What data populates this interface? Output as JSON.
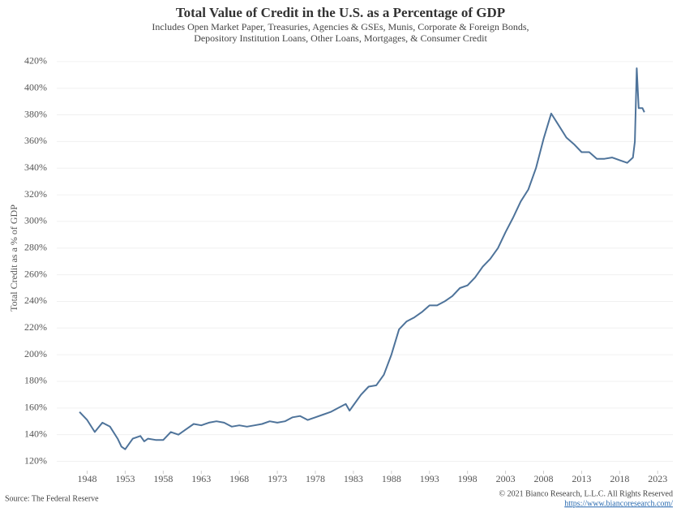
{
  "chart_data": {
    "type": "line",
    "title": "Total Value of Credit in the U.S. as a Percentage of GDP",
    "subtitle": [
      "Includes Open Market Paper, Treasuries, Agencies & GSEs, Munis, Corporate & Foreign Bonds,",
      "Depository Institution Loans, Other Loans, Mortgages, & Consumer Credit"
    ],
    "y_label": "Total Credit as a % of GDP",
    "source": "Source: The Federal Reserve",
    "copyright": "© 2021 Bianco Research, L.L.C. All Rights Reserved",
    "url": "https://www.biancoresearch.com/",
    "x": [
      1947,
      1948,
      1949,
      1950,
      1951,
      1952,
      1952.5,
      1953,
      1954,
      1955,
      1955.5,
      1956,
      1957,
      1958,
      1959,
      1960,
      1961,
      1962,
      1963,
      1964,
      1965,
      1966,
      1967,
      1968,
      1969,
      1970,
      1971,
      1972,
      1973,
      1974,
      1975,
      1976,
      1977,
      1978,
      1979,
      1980,
      1981,
      1982,
      1982.5,
      1983,
      1984,
      1985,
      1986,
      1987,
      1988,
      1989,
      1990,
      1991,
      1992,
      1993,
      1994,
      1995,
      1996,
      1997,
      1998,
      1999,
      2000,
      2001,
      2002,
      2003,
      2004,
      2005,
      2006,
      2007,
      2008,
      2009,
      2010,
      2011,
      2012,
      2013,
      2014,
      2015,
      2016,
      2017,
      2018,
      2019,
      2019.75,
      2020,
      2020.25,
      2020.5,
      2021,
      2021.25
    ],
    "series": [
      {
        "name": "Total Credit as a % of GDP",
        "color": "#4e739a",
        "values": [
          157,
          151,
          142,
          149,
          146,
          137,
          131,
          129,
          137,
          139,
          135,
          137,
          136,
          136,
          142,
          140,
          144,
          148,
          147,
          149,
          150,
          149,
          146,
          147,
          146,
          147,
          148,
          150,
          149,
          150,
          153,
          154,
          151,
          153,
          155,
          157,
          160,
          163,
          158,
          162,
          170,
          176,
          177,
          185,
          200,
          219,
          225,
          228,
          232,
          237,
          237,
          240,
          244,
          250,
          252,
          258,
          266,
          272,
          280,
          292,
          303,
          315,
          324,
          340,
          362,
          381,
          372,
          363,
          358,
          352,
          352,
          347,
          347,
          348,
          346,
          344,
          348,
          360,
          415,
          385,
          385,
          382
        ]
      }
    ],
    "xlim": [
      1944,
      2025
    ],
    "ylim": [
      113,
      426
    ],
    "xticks": [
      1948,
      1953,
      1958,
      1963,
      1968,
      1973,
      1978,
      1983,
      1988,
      1993,
      1998,
      2003,
      2008,
      2013,
      2018,
      2023
    ],
    "yticks": [
      {
        "value": 120,
        "label": "120%"
      },
      {
        "value": 140,
        "label": "140%"
      },
      {
        "value": 160,
        "label": "160%"
      },
      {
        "value": 180,
        "label": "180%"
      },
      {
        "value": 200,
        "label": "200%"
      },
      {
        "value": 220,
        "label": "220%"
      },
      {
        "value": 240,
        "label": "240%"
      },
      {
        "value": 260,
        "label": "260%"
      },
      {
        "value": 280,
        "label": "280%"
      },
      {
        "value": 300,
        "label": "300%"
      },
      {
        "value": 320,
        "label": "320%"
      },
      {
        "value": 340,
        "label": "340%"
      },
      {
        "value": 360,
        "label": "360%"
      },
      {
        "value": 380,
        "label": "380%"
      },
      {
        "value": 400,
        "label": "400%"
      },
      {
        "value": 420,
        "label": "420%"
      }
    ],
    "grid": true
  }
}
